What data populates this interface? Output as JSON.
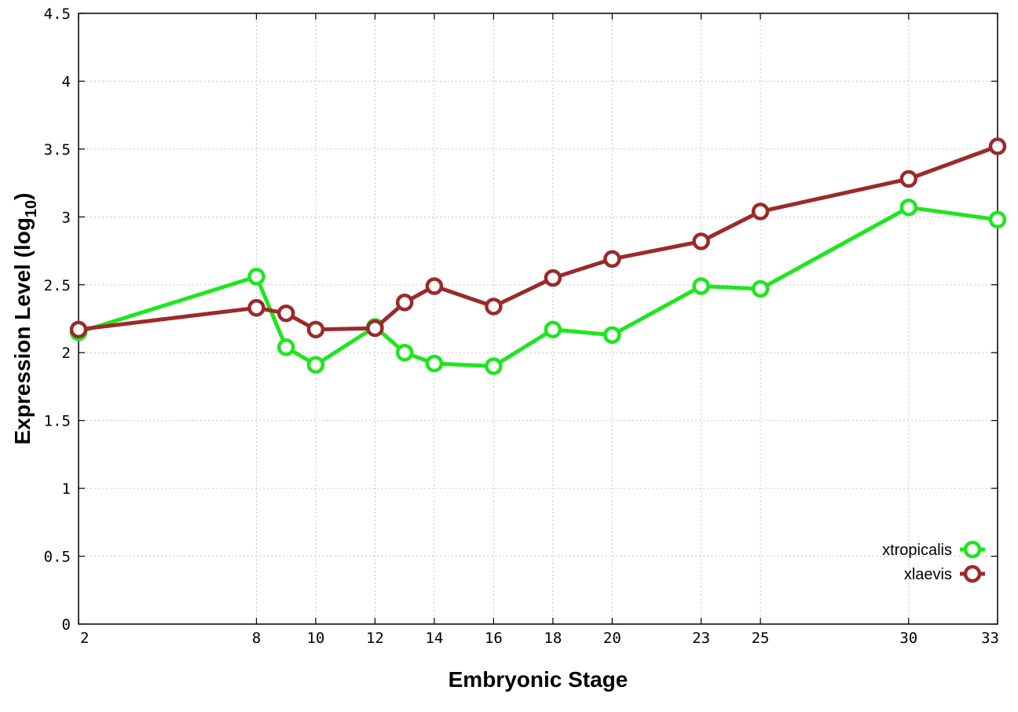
{
  "chart_data": {
    "type": "line",
    "title": "",
    "xlabel": "Embryonic Stage",
    "ylabel": "Expression Level (log",
    "ylabel_subscript": "10",
    "ylabel_suffix": ")",
    "xlim": [
      2,
      33
    ],
    "ylim": [
      0,
      4.5
    ],
    "x_ticks": [
      2,
      8,
      10,
      12,
      14,
      16,
      18,
      20,
      23,
      25,
      30,
      33
    ],
    "x_tick_labels": [
      "2",
      "8",
      "10",
      "12",
      "14",
      "16",
      "18",
      "20",
      "23",
      "25",
      "30",
      "33"
    ],
    "y_ticks": [
      0,
      0.5,
      1,
      1.5,
      2,
      2.5,
      3,
      3.5,
      4,
      4.5
    ],
    "y_tick_labels": [
      "0",
      "0.5",
      "1",
      "1.5",
      "2",
      "2.5",
      "3",
      "3.5",
      "4",
      "4.5"
    ],
    "grid": true,
    "legend_position": "bottom-right",
    "x": [
      2,
      8,
      9,
      10,
      12,
      13,
      14,
      16,
      18,
      20,
      23,
      25,
      30,
      33
    ],
    "series": [
      {
        "name": "xtropicalis",
        "color": "#1ee61e",
        "values": [
          2.15,
          2.56,
          2.04,
          1.91,
          2.19,
          2.0,
          1.92,
          1.9,
          2.17,
          2.13,
          2.49,
          2.47,
          3.07,
          2.98
        ]
      },
      {
        "name": "xlaevis",
        "color": "#9b2a2a",
        "values": [
          2.17,
          2.33,
          2.29,
          2.17,
          2.18,
          2.37,
          2.49,
          2.34,
          2.55,
          2.69,
          2.82,
          3.04,
          3.28,
          3.52
        ]
      }
    ]
  }
}
